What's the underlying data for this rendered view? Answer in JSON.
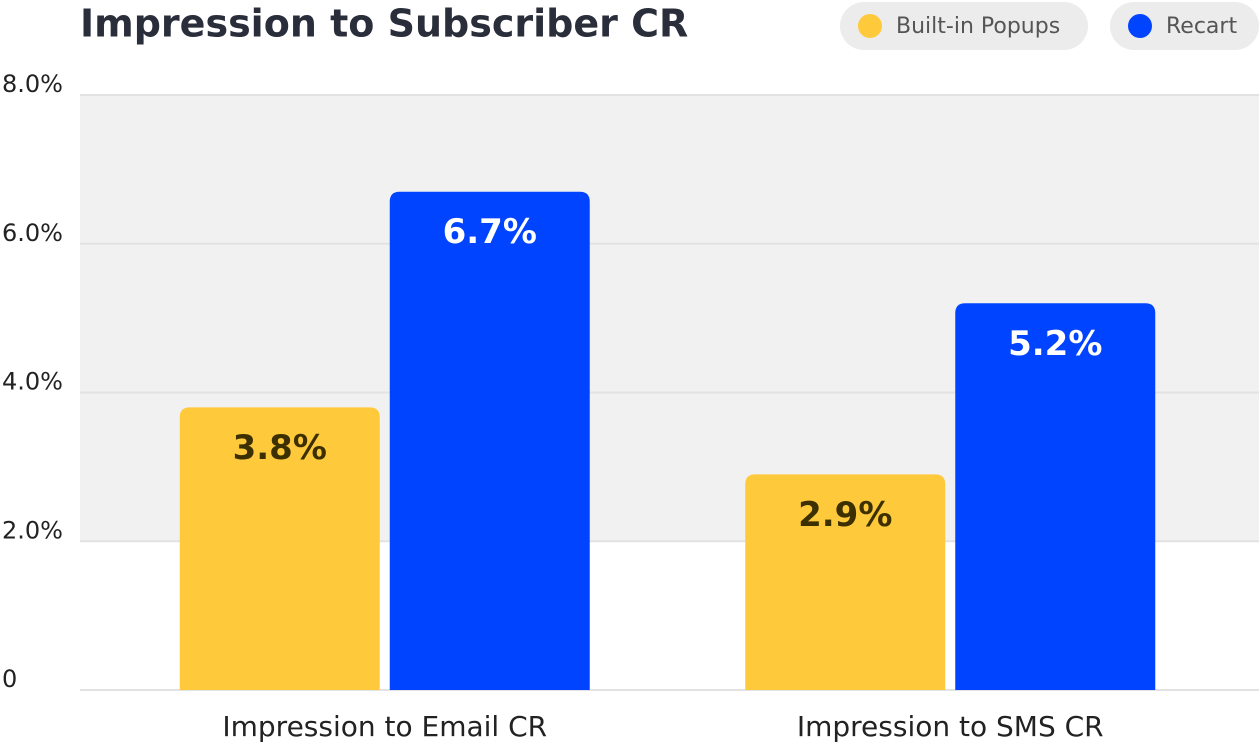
{
  "chart_data": {
    "type": "bar",
    "title": "Impression to Subscriber CR",
    "categories": [
      "Impression to Email CR",
      "Impression to SMS CR"
    ],
    "series": [
      {
        "name": "Built-in Popups",
        "color": "#FFC93C",
        "values": [
          3.8,
          2.9
        ],
        "value_labels": [
          "3.8%",
          "2.9%"
        ]
      },
      {
        "name": "Recart",
        "color": "#0044FF",
        "values": [
          6.7,
          5.2
        ],
        "value_labels": [
          "6.7%",
          "5.2%"
        ]
      }
    ],
    "ylim": [
      0,
      8
    ],
    "yticks": [
      0,
      {
        "value": 2,
        "label": "2.0%"
      },
      {
        "value": 4,
        "label": "4.0%"
      },
      {
        "value": 6,
        "label": "6.0%"
      },
      {
        "value": 8,
        "label": "8.0%"
      }
    ],
    "grid": true,
    "legend": "top-right"
  }
}
